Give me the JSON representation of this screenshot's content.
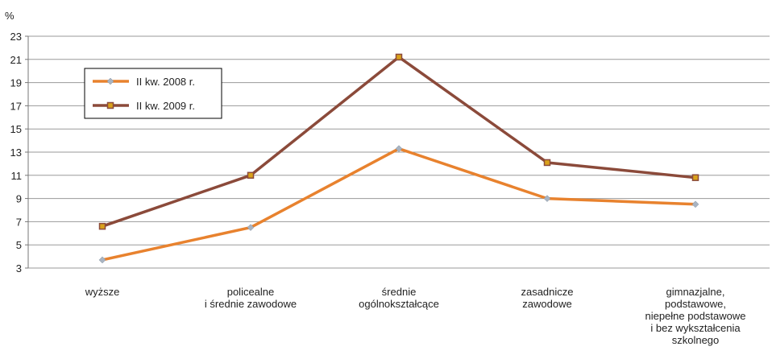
{
  "chart_data": {
    "type": "line",
    "y_label": "%",
    "categories": [
      "wyższe",
      "policealne\ni średnie zawodowe",
      "średnie\nogólnokształcące",
      "zasadnicze\nzawodowe",
      "gimnazjalne,\npodstawowe,\nniepełne podstawowe\ni bez wykształcenia\nszkolnego"
    ],
    "series": [
      {
        "name": "II kw. 2008 r.",
        "color": "#e8822e",
        "marker": "diamond",
        "marker_color": "#a9b4c2",
        "values": [
          3.7,
          6.5,
          13.3,
          9.0,
          8.5
        ]
      },
      {
        "name": "II kw. 2009 r.",
        "color": "#8b4a3a",
        "marker": "square",
        "marker_color": "#d9a21b",
        "values": [
          6.6,
          11.0,
          21.2,
          12.1,
          10.8
        ]
      }
    ],
    "ylim": [
      3,
      23
    ],
    "yticks": [
      3,
      5,
      7,
      9,
      11,
      13,
      15,
      17,
      19,
      21,
      23
    ],
    "grid": true,
    "legend": "upper left"
  }
}
